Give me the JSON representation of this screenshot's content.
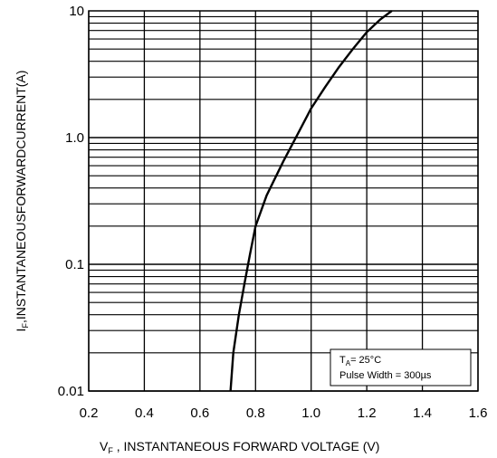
{
  "chart_data": {
    "type": "line",
    "title": "",
    "xlabel": "Vₙ , INSTANTANEOUS FORWARD VOLTAGE (V)",
    "xlabel_main": "V",
    "xlabel_sub": "F",
    "xlabel_rest": " , INSTANTANEOUS FORWARD VOLTAGE (V)",
    "ylabel_main": "I",
    "ylabel_sub": "F",
    "ylabel_rest": ",INSTANTANEOUSFORWARDCURRENT(A)",
    "x_scale": "linear",
    "y_scale": "log",
    "xlim": [
      0.2,
      1.6
    ],
    "ylim": [
      0.01,
      10
    ],
    "x_ticks": [
      0.2,
      0.4,
      0.6,
      0.8,
      1.0,
      1.2,
      1.4,
      1.6
    ],
    "x_tick_labels": [
      "0.2",
      "0.4",
      "0.6",
      "0.8",
      "1.0",
      "1.2",
      "1.4",
      "1.6"
    ],
    "y_ticks": [
      0.01,
      0.1,
      1.0,
      10
    ],
    "y_tick_labels": [
      "0.01",
      "0.1",
      "1.0",
      "10"
    ],
    "grid": true,
    "legend": "none",
    "series": [
      {
        "x": [
          0.71,
          0.72,
          0.74,
          0.76,
          0.78,
          0.8,
          0.84,
          0.9,
          0.95,
          1.0,
          1.05,
          1.1,
          1.15,
          1.2,
          1.25,
          1.29
        ],
        "y": [
          0.01,
          0.02,
          0.04,
          0.07,
          0.12,
          0.2,
          0.35,
          0.65,
          1.05,
          1.7,
          2.5,
          3.6,
          5.0,
          6.8,
          8.6,
          10
        ]
      }
    ],
    "annotation": {
      "line1_main": "T",
      "line1_sub": "A",
      "line1_rest": "= 25°C",
      "line2": "Pulse Width = 300µs"
    }
  }
}
